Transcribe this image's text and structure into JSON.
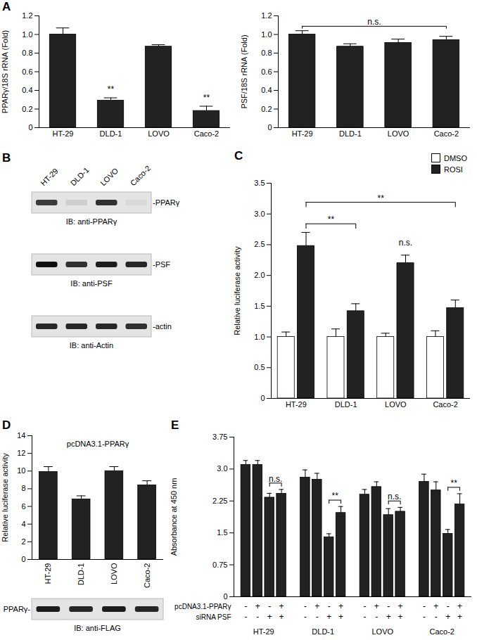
{
  "chart_data": [
    {
      "panel": "A",
      "type": "bar",
      "y_label": "PPARγ/18S rRNA (Fold)",
      "categories": [
        "HT-29",
        "DLD-1",
        "LOVO",
        "Caco-2"
      ],
      "values": [
        1.0,
        0.29,
        0.87,
        0.18
      ],
      "errors": [
        0.07,
        0.03,
        0.02,
        0.05
      ],
      "color": "#222222",
      "ylim": [
        0,
        1.2
      ],
      "yticks": [
        0,
        0.2,
        0.4,
        0.6,
        0.8,
        {
          "value": 1,
          "label": "1.0"
        },
        1.2
      ],
      "annotations": [
        {
          "text": "**",
          "from": "DLD-1",
          "to": "DLD-1"
        },
        {
          "text": "**",
          "from": "Caco-2",
          "to": "Caco-2"
        }
      ]
    },
    {
      "type": "bar",
      "y_label": "PSF/18S rRNA (Fold)",
      "categories": [
        "HT-29",
        "DLD-1",
        "LOVO",
        "Caco-2"
      ],
      "values": [
        1.0,
        0.87,
        0.91,
        0.94
      ],
      "errors": [
        0.04,
        0.03,
        0.04,
        0.04
      ],
      "color": "#222222",
      "ylim": [
        0,
        1.2
      ],
      "yticks": [
        0,
        0.2,
        0.4,
        0.6,
        0.8,
        {
          "value": 1,
          "label": "1.0"
        },
        1.2
      ],
      "annotations": [
        {
          "text": "n.s.",
          "from": "HT-29",
          "to": "Caco-2"
        }
      ]
    },
    {
      "panel": "C",
      "type": "bar",
      "y_label": "Relative luciferase activity",
      "categories": [
        "HT-29",
        "DLD-1",
        "LOVO",
        "Caco-2"
      ],
      "series": [
        {
          "name": "DMSO",
          "color": "#ffffff",
          "values": [
            1.0,
            1.0,
            1.0,
            1.0
          ],
          "errors": [
            0.08,
            0.13,
            0.06,
            0.1
          ]
        },
        {
          "name": "ROSI",
          "color": "#222222",
          "values": [
            2.48,
            1.42,
            2.2,
            1.47
          ],
          "errors": [
            0.22,
            0.12,
            0.13,
            0.13
          ]
        }
      ],
      "ylim": [
        0,
        3.5
      ],
      "yticks": [
        0,
        0.5,
        {
          "value": 1,
          "label": "1.0"
        },
        1.5,
        {
          "value": 2,
          "label": "2.0"
        },
        2.5,
        {
          "value": 3,
          "label": "3.0"
        },
        3.5
      ],
      "legend": "top-right",
      "annotations": [
        {
          "text": "n.s.",
          "from": [
            "LOVO",
            "ROSI"
          ],
          "to": [
            "LOVO",
            "ROSI"
          ]
        },
        {
          "text": "**",
          "from": [
            "HT-29",
            "ROSI"
          ],
          "to": [
            "DLD-1",
            "ROSI"
          ]
        },
        {
          "text": "**",
          "from": [
            "HT-29",
            "ROSI"
          ],
          "to": [
            "Caco-2",
            "ROSI"
          ]
        }
      ]
    },
    {
      "panel": "D",
      "type": "bar",
      "title": "pcDNA3.1-PPARγ",
      "y_label": "Relative luciferase activity",
      "categories": [
        "HT-29",
        "DLD-1",
        "LOVO",
        "Caco-2"
      ],
      "values": [
        9.9,
        6.8,
        10.0,
        8.4
      ],
      "errors": [
        0.6,
        0.4,
        0.5,
        0.5
      ],
      "color": "#222222",
      "ylim": [
        0,
        14
      ],
      "yticks": [
        0,
        2,
        4,
        6,
        8,
        10,
        12,
        14
      ],
      "blot": {
        "rows": [
          {
            "band": "PPARγ-",
            "caption": "IB: anti-FLAG",
            "intensity": [
              0.95,
              0.9,
              0.95,
              0.9
            ]
          }
        ]
      }
    },
    {
      "panel": "E",
      "type": "bar",
      "y_label": "Absorbance at 450 nm",
      "categories": [
        "HT-29",
        "DLD-1",
        "LOVO",
        "Caco-2"
      ],
      "conditions": [
        {
          "label": "pcDNA3.1-PPARγ",
          "marks": [
            "-",
            "+",
            "-",
            "+"
          ]
        },
        {
          "label": "siRNA PSF",
          "marks": [
            "-",
            "-",
            "+",
            "+"
          ]
        }
      ],
      "values": [
        [
          3.1,
          3.1,
          2.33,
          2.42
        ],
        [
          2.8,
          2.75,
          1.4,
          1.97
        ],
        [
          2.4,
          2.58,
          1.92,
          2.0
        ],
        [
          2.7,
          2.5,
          1.48,
          2.17
        ]
      ],
      "errors": [
        [
          0.1,
          0.1,
          0.1,
          0.1
        ],
        [
          0.18,
          0.15,
          0.08,
          0.15
        ],
        [
          0.12,
          0.12,
          0.15,
          0.1
        ],
        [
          0.18,
          0.2,
          0.1,
          0.25
        ]
      ],
      "color": "#222222",
      "ylim": [
        0,
        3.75
      ],
      "yticks": [
        0,
        0.75,
        1.5,
        2.25,
        {
          "value": 3,
          "label": "3.0"
        },
        3.75
      ],
      "annotations": [
        {
          "text": "n.s.",
          "from": [
            "HT-29",
            2
          ],
          "to": [
            "HT-29",
            3
          ]
        },
        {
          "text": "**",
          "from": [
            "DLD-1",
            2
          ],
          "to": [
            "DLD-1",
            3
          ]
        },
        {
          "text": "n.s.",
          "from": [
            "LOVO",
            2
          ],
          "to": [
            "LOVO",
            3
          ]
        },
        {
          "text": "**",
          "from": [
            "Caco-2",
            2
          ],
          "to": [
            "Caco-2",
            3
          ]
        }
      ]
    }
  ],
  "blots": [
    {
      "panel": "B",
      "lanes": [
        "HT-29",
        "DLD-1",
        "LOVO",
        "Caco-2"
      ],
      "rows": [
        {
          "band": "-PPARγ",
          "caption": "IB: anti-PPARγ",
          "intensity": [
            0.8,
            0.1,
            0.85,
            0.05
          ]
        },
        {
          "band": "-PSF",
          "caption": "IB: anti-PSF",
          "intensity": [
            1.0,
            0.85,
            0.95,
            0.9
          ]
        },
        {
          "band": "-actin",
          "caption": "IB: anti-Actin",
          "intensity": [
            0.9,
            0.9,
            0.9,
            0.85
          ]
        }
      ]
    }
  ]
}
